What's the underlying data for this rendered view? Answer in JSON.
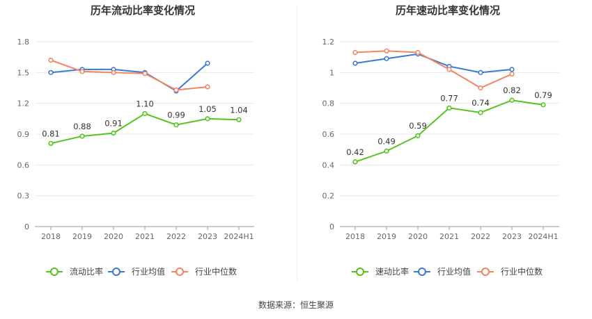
{
  "chart_data": [
    {
      "type": "line",
      "title": "历年流动比率变化情况",
      "categories": [
        "2018",
        "2019",
        "2020",
        "2021",
        "2022",
        "2023",
        "2024H1"
      ],
      "yticks": [
        "0",
        "0.3",
        "0.6",
        "0.9",
        "1.2",
        "1.5",
        "1.8"
      ],
      "ylim": [
        0,
        1.8
      ],
      "series": [
        {
          "name": "流动比率",
          "color": "#52c41a",
          "values": [
            0.81,
            0.88,
            0.91,
            1.1,
            0.99,
            1.05,
            1.04
          ],
          "labels": [
            "0.81",
            "0.88",
            "0.91",
            "1.10",
            "0.99",
            "1.05",
            "1.04"
          ]
        },
        {
          "name": "行业均值",
          "color": "#3a78d8",
          "values": [
            1.5,
            1.53,
            1.53,
            1.5,
            1.32,
            1.59,
            null
          ],
          "labels": []
        },
        {
          "name": "行业中位数",
          "color": "#f4845f",
          "values": [
            1.62,
            1.51,
            1.5,
            1.49,
            1.33,
            1.36,
            null
          ],
          "labels": []
        }
      ]
    },
    {
      "type": "line",
      "title": "历年速动比率变化情况",
      "categories": [
        "2018",
        "2019",
        "2020",
        "2021",
        "2022",
        "2023",
        "2024H1"
      ],
      "yticks": [
        "0",
        "0.2",
        "0.4",
        "0.6",
        "0.8",
        "1",
        "1.2"
      ],
      "ylim": [
        0,
        1.2
      ],
      "series": [
        {
          "name": "速动比率",
          "color": "#52c41a",
          "values": [
            0.42,
            0.49,
            0.59,
            0.77,
            0.74,
            0.82,
            0.79
          ],
          "labels": [
            "0.42",
            "0.49",
            "0.59",
            "0.77",
            "0.74",
            "0.82",
            "0.79"
          ]
        },
        {
          "name": "行业均值",
          "color": "#3a78d8",
          "values": [
            1.06,
            1.09,
            1.12,
            1.04,
            1.0,
            1.02,
            null
          ],
          "labels": []
        },
        {
          "name": "行业中位数",
          "color": "#f4845f",
          "values": [
            1.13,
            1.14,
            1.13,
            1.02,
            0.9,
            0.99,
            null
          ],
          "labels": []
        }
      ]
    }
  ],
  "footer": {
    "source": "数据来源：恒生聚源"
  }
}
